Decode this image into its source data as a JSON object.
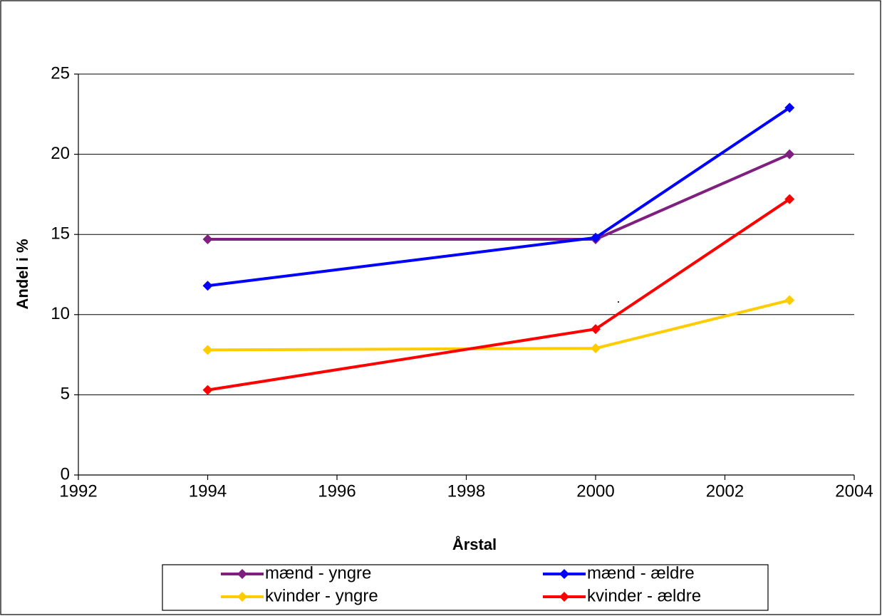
{
  "chart_data": {
    "type": "line",
    "x_label": "Årstal",
    "y_label": "Andel i %",
    "x": [
      1994,
      2000,
      2003
    ],
    "series": [
      {
        "name": "mænd - yngre",
        "color": "#7f1f7f",
        "values": [
          14.7,
          14.7,
          20.0
        ]
      },
      {
        "name": "mænd - ældre",
        "color": "#0000ff",
        "values": [
          11.8,
          14.8,
          22.9
        ]
      },
      {
        "name": "kvinder - yngre",
        "color": "#ffcc00",
        "values": [
          7.8,
          7.9,
          10.9
        ]
      },
      {
        "name": "kvinder - ældre",
        "color": "#ff0000",
        "values": [
          5.3,
          9.1,
          17.2
        ]
      }
    ],
    "xlim": [
      1992,
      2004
    ],
    "xticks": [
      1992,
      1994,
      1996,
      1998,
      2000,
      2002,
      2004
    ],
    "ylim": [
      0,
      25
    ],
    "yticks": [
      0,
      5,
      10,
      15,
      20,
      25
    ],
    "grid": true,
    "legend": "bottom",
    "annotation": "."
  }
}
